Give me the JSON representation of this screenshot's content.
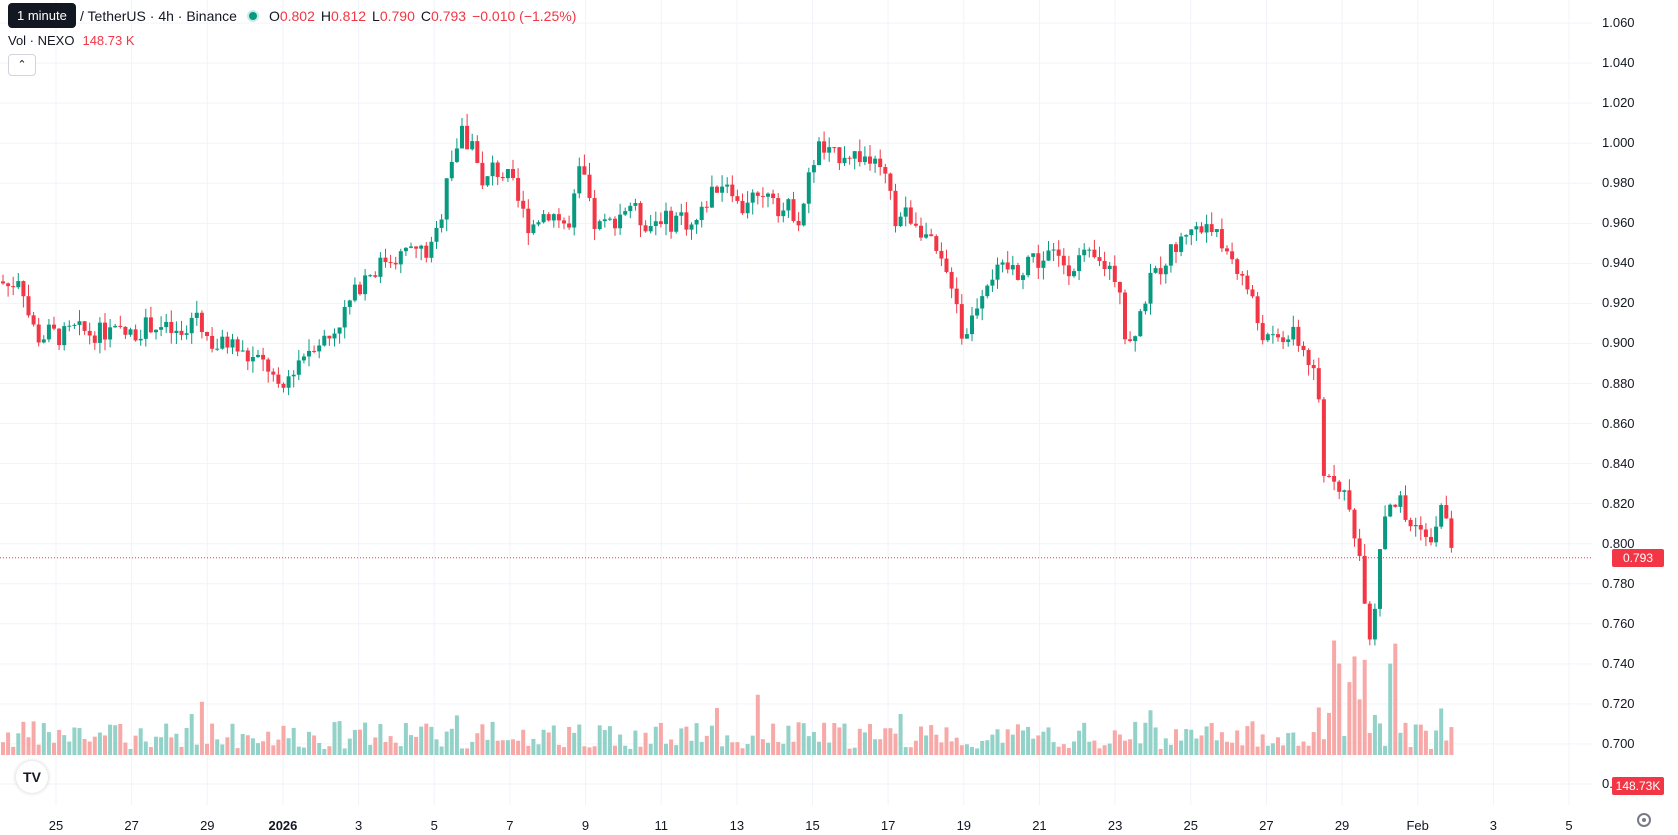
{
  "header": {
    "symbol_title": "/ TetherUS · 4h · Binance",
    "tooltip": "1 minute",
    "ohlc": {
      "o_label": "O",
      "o": "0.802",
      "h_label": "H",
      "h": "0.812",
      "l_label": "L",
      "l": "0.790",
      "c_label": "C",
      "c": "0.793",
      "change": "−0.010 (−1.25%)"
    },
    "volume_label": "Vol · NEXO",
    "volume_value": "148.73 K",
    "collapse_icon": "chevron-up-icon"
  },
  "price_axis": {
    "ticks": [
      "1.060",
      "1.040",
      "1.020",
      "1.000",
      "0.980",
      "0.960",
      "0.940",
      "0.920",
      "0.900",
      "0.880",
      "0.860",
      "0.840",
      "0.820",
      "0.800",
      "0.780",
      "0.760",
      "0.740",
      "0.720",
      "0.700",
      "0.680"
    ],
    "last_price": "0.793",
    "volume_badge": "148.73K"
  },
  "time_axis": {
    "labels": [
      "25",
      "27",
      "29",
      "2026",
      "3",
      "5",
      "7",
      "9",
      "11",
      "13",
      "15",
      "17",
      "19",
      "21",
      "23",
      "25",
      "27",
      "29",
      "Feb",
      "3",
      "5"
    ]
  },
  "colors": {
    "up": "#089981",
    "down": "#f23645",
    "up_vol": "#93d2c8",
    "down_vol": "#f7a9a7"
  },
  "chart_data": {
    "type": "candlestick",
    "symbol": "NEXO / TetherUS",
    "interval": "4h",
    "exchange": "Binance",
    "ylim": [
      0.672,
      1.068
    ],
    "grid": true,
    "last_close": 0.793,
    "series": [
      {
        "name": "Price",
        "close_path": [
          [
            0,
            0.931
          ],
          [
            10,
            0.928
          ],
          [
            20,
            0.935
          ],
          [
            30,
            0.911
          ],
          [
            40,
            0.902
          ],
          [
            50,
            0.906
          ],
          [
            60,
            0.903
          ],
          [
            75,
            0.907
          ],
          [
            90,
            0.905
          ],
          [
            110,
            0.906
          ],
          [
            130,
            0.904
          ],
          [
            150,
            0.91
          ],
          [
            170,
            0.906
          ],
          [
            185,
            0.902
          ],
          [
            195,
            0.918
          ],
          [
            205,
            0.905
          ],
          [
            215,
            0.898
          ],
          [
            230,
            0.901
          ],
          [
            245,
            0.893
          ],
          [
            260,
            0.891
          ],
          [
            270,
            0.887
          ],
          [
            280,
            0.873
          ],
          [
            290,
            0.885
          ],
          [
            300,
            0.893
          ],
          [
            315,
            0.901
          ],
          [
            330,
            0.903
          ],
          [
            345,
            0.916
          ],
          [
            355,
            0.925
          ],
          [
            365,
            0.934
          ],
          [
            375,
            0.937
          ],
          [
            385,
            0.942
          ],
          [
            400,
            0.944
          ],
          [
            415,
            0.947
          ],
          [
            430,
            0.945
          ],
          [
            440,
            0.96
          ],
          [
            448,
            0.99
          ],
          [
            455,
            0.996
          ],
          [
            462,
            1.005
          ],
          [
            468,
            0.998
          ],
          [
            475,
            1.002
          ],
          [
            483,
            0.975
          ],
          [
            492,
            0.988
          ],
          [
            500,
            0.985
          ],
          [
            510,
            0.982
          ],
          [
            520,
            0.968
          ],
          [
            530,
            0.958
          ],
          [
            540,
            0.964
          ],
          [
            550,
            0.966
          ],
          [
            560,
            0.962
          ],
          [
            570,
            0.956
          ],
          [
            578,
            0.985
          ],
          [
            585,
            0.982
          ],
          [
            592,
            0.96
          ],
          [
            600,
            0.958
          ],
          [
            610,
            0.96
          ],
          [
            620,
            0.965
          ],
          [
            630,
            0.97
          ],
          [
            640,
            0.962
          ],
          [
            650,
            0.959
          ],
          [
            660,
            0.964
          ],
          [
            670,
            0.96
          ],
          [
            680,
            0.965
          ],
          [
            690,
            0.958
          ],
          [
            700,
            0.963
          ],
          [
            710,
            0.975
          ],
          [
            720,
            0.98
          ],
          [
            730,
            0.982
          ],
          [
            740,
            0.965
          ],
          [
            750,
            0.975
          ],
          [
            760,
            0.968
          ],
          [
            770,
            0.98
          ],
          [
            780,
            0.966
          ],
          [
            790,
            0.968
          ],
          [
            800,
            0.962
          ],
          [
            810,
            0.985
          ],
          [
            818,
            0.999
          ],
          [
            825,
            0.995
          ],
          [
            835,
            0.993
          ],
          [
            845,
            0.996
          ],
          [
            855,
            0.994
          ],
          [
            865,
            0.993
          ],
          [
            875,
            0.988
          ],
          [
            885,
            0.983
          ],
          [
            895,
            0.962
          ],
          [
            905,
            0.965
          ],
          [
            915,
            0.962
          ],
          [
            925,
            0.955
          ],
          [
            935,
            0.945
          ],
          [
            945,
            0.935
          ],
          [
            955,
            0.929
          ],
          [
            962,
            0.903
          ],
          [
            970,
            0.91
          ],
          [
            980,
            0.925
          ],
          [
            990,
            0.935
          ],
          [
            1000,
            0.935
          ],
          [
            1010,
            0.938
          ],
          [
            1020,
            0.935
          ],
          [
            1030,
            0.945
          ],
          [
            1040,
            0.94
          ],
          [
            1050,
            0.945
          ],
          [
            1060,
            0.942
          ],
          [
            1070,
            0.938
          ],
          [
            1080,
            0.943
          ],
          [
            1090,
            0.942
          ],
          [
            1100,
            0.94
          ],
          [
            1110,
            0.938
          ],
          [
            1120,
            0.93
          ],
          [
            1125,
            0.905
          ],
          [
            1130,
            0.9
          ],
          [
            1140,
            0.915
          ],
          [
            1150,
            0.93
          ],
          [
            1160,
            0.938
          ],
          [
            1170,
            0.945
          ],
          [
            1180,
            0.95
          ],
          [
            1190,
            0.96
          ],
          [
            1200,
            0.955
          ],
          [
            1210,
            0.963
          ],
          [
            1220,
            0.948
          ],
          [
            1230,
            0.945
          ],
          [
            1240,
            0.935
          ],
          [
            1250,
            0.925
          ],
          [
            1260,
            0.907
          ],
          [
            1270,
            0.9
          ],
          [
            1280,
            0.902
          ],
          [
            1290,
            0.905
          ],
          [
            1300,
            0.9
          ],
          [
            1310,
            0.89
          ],
          [
            1318,
            0.875
          ],
          [
            1325,
            0.825
          ],
          [
            1330,
            0.838
          ],
          [
            1340,
            0.83
          ],
          [
            1350,
            0.815
          ],
          [
            1358,
            0.8
          ],
          [
            1366,
            0.77
          ],
          [
            1370,
            0.755
          ],
          [
            1375,
            0.77
          ],
          [
            1380,
            0.8
          ],
          [
            1385,
            0.815
          ],
          [
            1390,
            0.822
          ],
          [
            1395,
            0.82
          ],
          [
            1400,
            0.822
          ],
          [
            1405,
            0.812
          ],
          [
            1410,
            0.81
          ],
          [
            1415,
            0.808
          ],
          [
            1420,
            0.812
          ],
          [
            1425,
            0.805
          ],
          [
            1430,
            0.795
          ],
          [
            1435,
            0.81
          ],
          [
            1440,
            0.818
          ],
          [
            1445,
            0.812
          ],
          [
            1450,
            0.802
          ],
          [
            1455,
            0.793
          ]
        ]
      }
    ]
  }
}
